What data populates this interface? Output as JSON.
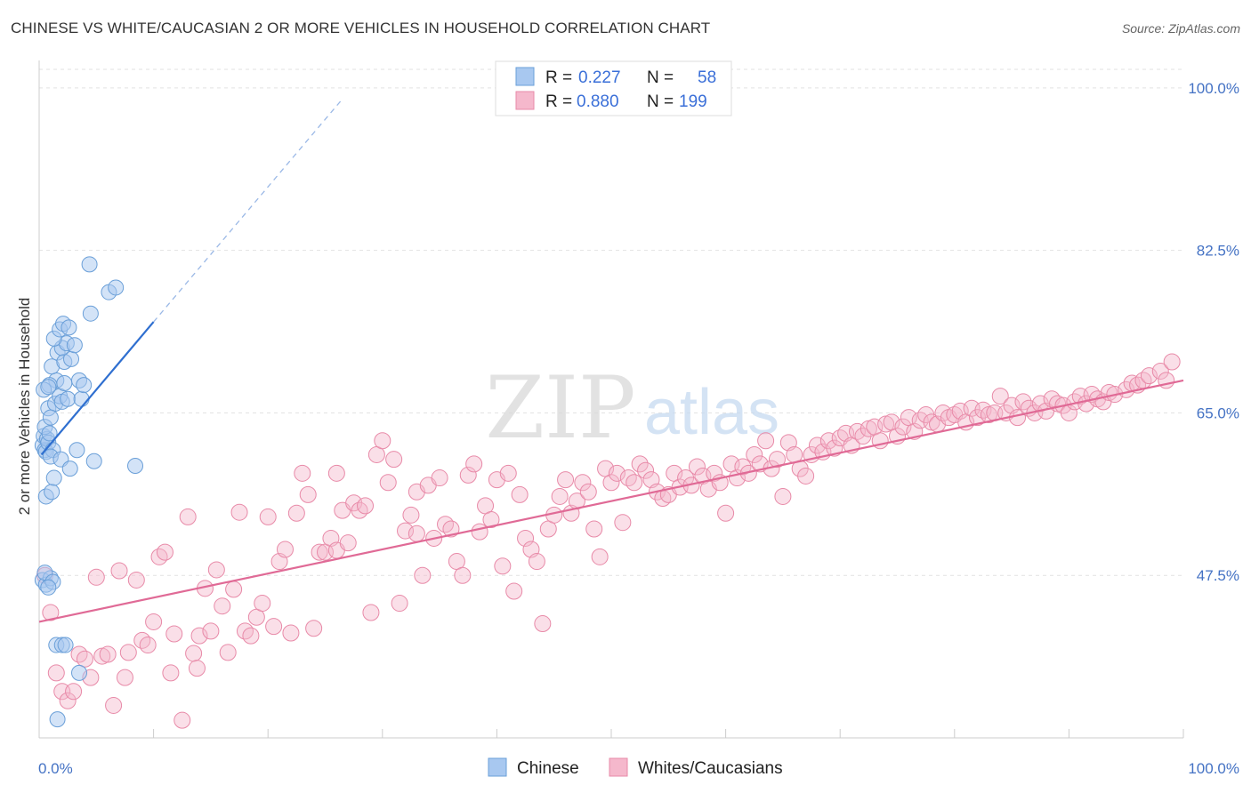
{
  "title": "CHINESE VS WHITE/CAUCASIAN 2 OR MORE VEHICLES IN HOUSEHOLD CORRELATION CHART",
  "source": "Source: ZipAtlas.com",
  "watermark": {
    "zip": "ZIP",
    "atlas": "atlas"
  },
  "colors": {
    "chinese_fill": "#a8c8f0",
    "chinese_stroke": "#6a9fd8",
    "chinese_line": "#2f6fd0",
    "white_fill": "#f5b8cc",
    "white_stroke": "#e88aa8",
    "white_line": "#e06a96",
    "tick": "#4472c4"
  },
  "legend": {
    "rows": [
      {
        "r_label": "R =",
        "r_value": "0.227",
        "n_label": "N =",
        "n_value": "58"
      },
      {
        "r_label": "R =",
        "r_value": "0.880",
        "n_label": "N =",
        "n_value": "199"
      }
    ]
  },
  "chart_data": {
    "type": "scatter",
    "title": "CHINESE VS WHITE/CAUCASIAN 2 OR MORE VEHICLES IN HOUSEHOLD CORRELATION CHART",
    "xlabel": "",
    "ylabel": "2 or more Vehicles in Household",
    "xlim": [
      0,
      100
    ],
    "ylim": [
      30,
      102
    ],
    "x_tick_labels": [
      "0.0%",
      "100.0%"
    ],
    "y_ticks": [
      47.5,
      65.0,
      82.5,
      100.0
    ],
    "y_tick_labels": [
      "47.5%",
      "65.0%",
      "82.5%",
      "100.0%"
    ],
    "grid": true,
    "legend_position": "top-center",
    "series": [
      {
        "name": "Chinese",
        "r": 0.227,
        "n": 58,
        "trend": {
          "x": [
            0.2,
            10.0
          ],
          "y": [
            60.5,
            74.8
          ]
        },
        "trend_dashed": {
          "x": [
            10.0,
            26.5
          ],
          "y": [
            74.8,
            98.8
          ]
        },
        "points": [
          [
            0.3,
            61.5
          ],
          [
            0.4,
            62.5
          ],
          [
            0.5,
            61.0
          ],
          [
            0.6,
            60.8
          ],
          [
            0.7,
            62.2
          ],
          [
            0.8,
            61.8
          ],
          [
            0.5,
            63.5
          ],
          [
            0.9,
            62.8
          ],
          [
            1.2,
            61.0
          ],
          [
            1.0,
            60.3
          ],
          [
            0.6,
            56.0
          ],
          [
            1.1,
            56.5
          ],
          [
            1.3,
            58.0
          ],
          [
            0.8,
            65.5
          ],
          [
            1.4,
            66.0
          ],
          [
            1.0,
            64.5
          ],
          [
            1.8,
            66.8
          ],
          [
            2.0,
            66.2
          ],
          [
            1.5,
            68.5
          ],
          [
            2.2,
            68.2
          ],
          [
            2.5,
            66.5
          ],
          [
            0.9,
            68.0
          ],
          [
            1.1,
            70.0
          ],
          [
            1.6,
            71.5
          ],
          [
            2.2,
            70.5
          ],
          [
            2.8,
            70.8
          ],
          [
            2.0,
            72.0
          ],
          [
            2.4,
            72.5
          ],
          [
            1.3,
            73.0
          ],
          [
            1.8,
            74.0
          ],
          [
            2.1,
            74.6
          ],
          [
            2.6,
            74.2
          ],
          [
            3.1,
            72.3
          ],
          [
            3.5,
            68.5
          ],
          [
            3.7,
            66.5
          ],
          [
            3.9,
            68.0
          ],
          [
            0.4,
            67.5
          ],
          [
            0.8,
            67.8
          ],
          [
            3.3,
            61.0
          ],
          [
            1.9,
            60.0
          ],
          [
            2.7,
            59.0
          ],
          [
            4.8,
            59.8
          ],
          [
            8.4,
            59.3
          ],
          [
            4.5,
            75.7
          ],
          [
            6.1,
            78.0
          ],
          [
            6.7,
            78.5
          ],
          [
            4.4,
            81.0
          ],
          [
            0.3,
            47.0
          ],
          [
            0.6,
            46.5
          ],
          [
            1.0,
            47.2
          ],
          [
            0.5,
            47.8
          ],
          [
            1.2,
            46.8
          ],
          [
            0.8,
            46.2
          ],
          [
            1.5,
            40.0
          ],
          [
            2.0,
            40.0
          ],
          [
            2.3,
            40.0
          ],
          [
            3.5,
            37.0
          ],
          [
            1.6,
            32.0
          ]
        ]
      },
      {
        "name": "Whites/Caucasians",
        "r": 0.88,
        "n": 199,
        "trend": {
          "x": [
            0.0,
            100.0
          ],
          "y": [
            42.5,
            68.5
          ]
        },
        "points": [
          [
            0.5,
            47.5
          ],
          [
            1.0,
            43.5
          ],
          [
            1.5,
            37.0
          ],
          [
            2.0,
            35.0
          ],
          [
            2.5,
            34.0
          ],
          [
            3.0,
            35.0
          ],
          [
            3.5,
            39.0
          ],
          [
            4.0,
            38.5
          ],
          [
            4.5,
            36.5
          ],
          [
            5.0,
            47.3
          ],
          [
            5.5,
            38.8
          ],
          [
            6.0,
            39.0
          ],
          [
            6.5,
            33.5
          ],
          [
            7.0,
            48.0
          ],
          [
            7.5,
            36.5
          ],
          [
            7.8,
            39.2
          ],
          [
            8.5,
            47.0
          ],
          [
            9.0,
            40.5
          ],
          [
            9.5,
            40.0
          ],
          [
            10.0,
            42.5
          ],
          [
            10.5,
            49.5
          ],
          [
            11.0,
            50.0
          ],
          [
            11.5,
            37.0
          ],
          [
            11.8,
            41.2
          ],
          [
            12.5,
            31.9
          ],
          [
            13.0,
            53.8
          ],
          [
            13.5,
            39.1
          ],
          [
            13.8,
            37.5
          ],
          [
            14.0,
            41.0
          ],
          [
            14.5,
            46.1
          ],
          [
            15.0,
            41.5
          ],
          [
            15.5,
            48.1
          ],
          [
            16.0,
            44.2
          ],
          [
            16.5,
            39.2
          ],
          [
            17.0,
            46.0
          ],
          [
            17.5,
            54.3
          ],
          [
            18.0,
            41.5
          ],
          [
            18.5,
            41.0
          ],
          [
            19.0,
            43.0
          ],
          [
            19.5,
            44.5
          ],
          [
            20.0,
            53.8
          ],
          [
            20.5,
            42.0
          ],
          [
            21.0,
            49.0
          ],
          [
            21.5,
            50.3
          ],
          [
            22.0,
            41.3
          ],
          [
            22.5,
            54.2
          ],
          [
            23.0,
            58.5
          ],
          [
            23.5,
            56.2
          ],
          [
            24.0,
            41.8
          ],
          [
            24.5,
            50.0
          ],
          [
            25.0,
            50.0
          ],
          [
            25.5,
            51.5
          ],
          [
            26.0,
            50.2
          ],
          [
            26.5,
            54.5
          ],
          [
            27.0,
            51.0
          ],
          [
            27.5,
            55.3
          ],
          [
            28.0,
            54.5
          ],
          [
            28.5,
            55.0
          ],
          [
            29.0,
            43.5
          ],
          [
            29.5,
            60.5
          ],
          [
            30.0,
            62.0
          ],
          [
            30.5,
            57.5
          ],
          [
            31.0,
            60.0
          ],
          [
            31.5,
            44.5
          ],
          [
            32.0,
            52.3
          ],
          [
            32.5,
            54.0
          ],
          [
            33.0,
            56.5
          ],
          [
            33.5,
            47.5
          ],
          [
            34.0,
            57.2
          ],
          [
            34.5,
            51.5
          ],
          [
            35.0,
            58.0
          ],
          [
            35.5,
            53.0
          ],
          [
            36.0,
            52.5
          ],
          [
            36.5,
            49.0
          ],
          [
            37.0,
            47.5
          ],
          [
            37.5,
            58.3
          ],
          [
            38.0,
            59.5
          ],
          [
            38.5,
            52.2
          ],
          [
            39.0,
            55.0
          ],
          [
            39.5,
            53.5
          ],
          [
            40.0,
            57.8
          ],
          [
            40.5,
            48.5
          ],
          [
            41.0,
            58.5
          ],
          [
            41.5,
            45.8
          ],
          [
            42.0,
            56.2
          ],
          [
            42.5,
            51.5
          ],
          [
            43.0,
            50.3
          ],
          [
            43.5,
            49.0
          ],
          [
            44.0,
            42.3
          ],
          [
            44.5,
            52.5
          ],
          [
            45.0,
            54.0
          ],
          [
            45.5,
            56.0
          ],
          [
            46.0,
            57.8
          ],
          [
            46.5,
            54.2
          ],
          [
            47.0,
            55.5
          ],
          [
            47.5,
            57.5
          ],
          [
            48.0,
            56.5
          ],
          [
            48.5,
            52.5
          ],
          [
            49.0,
            49.5
          ],
          [
            49.5,
            59.0
          ],
          [
            50.0,
            57.5
          ],
          [
            50.5,
            58.5
          ],
          [
            51.0,
            53.2
          ],
          [
            51.5,
            58.0
          ],
          [
            52.0,
            57.5
          ],
          [
            52.5,
            59.5
          ],
          [
            53.0,
            58.8
          ],
          [
            53.5,
            57.8
          ],
          [
            54.0,
            56.5
          ],
          [
            54.5,
            55.8
          ],
          [
            55.0,
            56.2
          ],
          [
            55.5,
            58.5
          ],
          [
            56.0,
            57.0
          ],
          [
            56.5,
            58.0
          ],
          [
            57.0,
            57.2
          ],
          [
            57.5,
            59.2
          ],
          [
            58.0,
            58.2
          ],
          [
            58.5,
            56.8
          ],
          [
            59.0,
            58.5
          ],
          [
            59.5,
            57.5
          ],
          [
            60.0,
            54.2
          ],
          [
            60.5,
            59.5
          ],
          [
            61.0,
            58.0
          ],
          [
            61.5,
            59.2
          ],
          [
            62.0,
            58.5
          ],
          [
            62.5,
            60.5
          ],
          [
            63.0,
            59.5
          ],
          [
            63.5,
            62.0
          ],
          [
            64.0,
            59.0
          ],
          [
            64.5,
            60.0
          ],
          [
            65.0,
            56.0
          ],
          [
            65.5,
            61.8
          ],
          [
            66.0,
            60.5
          ],
          [
            66.5,
            59.0
          ],
          [
            67.0,
            58.2
          ],
          [
            67.5,
            60.5
          ],
          [
            68.0,
            61.5
          ],
          [
            68.5,
            60.8
          ],
          [
            69.0,
            62.0
          ],
          [
            69.5,
            61.2
          ],
          [
            70.0,
            62.3
          ],
          [
            70.5,
            62.8
          ],
          [
            71.0,
            61.5
          ],
          [
            71.5,
            63.0
          ],
          [
            72.0,
            62.5
          ],
          [
            72.5,
            63.3
          ],
          [
            73.0,
            63.5
          ],
          [
            73.5,
            62.0
          ],
          [
            74.0,
            63.8
          ],
          [
            74.5,
            64.0
          ],
          [
            75.0,
            62.5
          ],
          [
            75.5,
            63.5
          ],
          [
            76.0,
            64.5
          ],
          [
            76.5,
            63.0
          ],
          [
            77.0,
            64.2
          ],
          [
            77.5,
            64.8
          ],
          [
            78.0,
            64.0
          ],
          [
            78.5,
            63.8
          ],
          [
            79.0,
            65.0
          ],
          [
            79.5,
            64.5
          ],
          [
            80.0,
            64.8
          ],
          [
            80.5,
            65.2
          ],
          [
            81.0,
            64.0
          ],
          [
            81.5,
            65.5
          ],
          [
            82.0,
            64.5
          ],
          [
            82.5,
            65.3
          ],
          [
            83.0,
            64.8
          ],
          [
            83.5,
            65.0
          ],
          [
            84.0,
            66.8
          ],
          [
            84.5,
            65.0
          ],
          [
            85.0,
            65.8
          ],
          [
            85.5,
            64.5
          ],
          [
            86.0,
            66.2
          ],
          [
            86.5,
            65.5
          ],
          [
            87.0,
            65.0
          ],
          [
            87.5,
            66.0
          ],
          [
            88.0,
            65.2
          ],
          [
            88.5,
            66.5
          ],
          [
            89.0,
            66.0
          ],
          [
            89.5,
            65.8
          ],
          [
            90.0,
            65.0
          ],
          [
            90.5,
            66.2
          ],
          [
            91.0,
            66.8
          ],
          [
            91.5,
            66.0
          ],
          [
            92.0,
            67.0
          ],
          [
            92.5,
            66.5
          ],
          [
            93.0,
            66.2
          ],
          [
            93.5,
            67.2
          ],
          [
            94.0,
            67.0
          ],
          [
            95.0,
            67.5
          ],
          [
            95.5,
            68.2
          ],
          [
            96.0,
            68.0
          ],
          [
            96.5,
            68.5
          ],
          [
            97.0,
            69.0
          ],
          [
            98.0,
            69.5
          ],
          [
            98.5,
            68.5
          ],
          [
            99.0,
            70.5
          ],
          [
            33.0,
            52.0
          ],
          [
            26.0,
            58.5
          ]
        ]
      }
    ]
  },
  "bottom_legend": {
    "items": [
      {
        "label": "Chinese"
      },
      {
        "label": "Whites/Caucasians"
      }
    ]
  },
  "axis": {
    "ylabel": "2 or more Vehicles in Household",
    "x_left": "0.0%",
    "x_right": "100.0%"
  }
}
